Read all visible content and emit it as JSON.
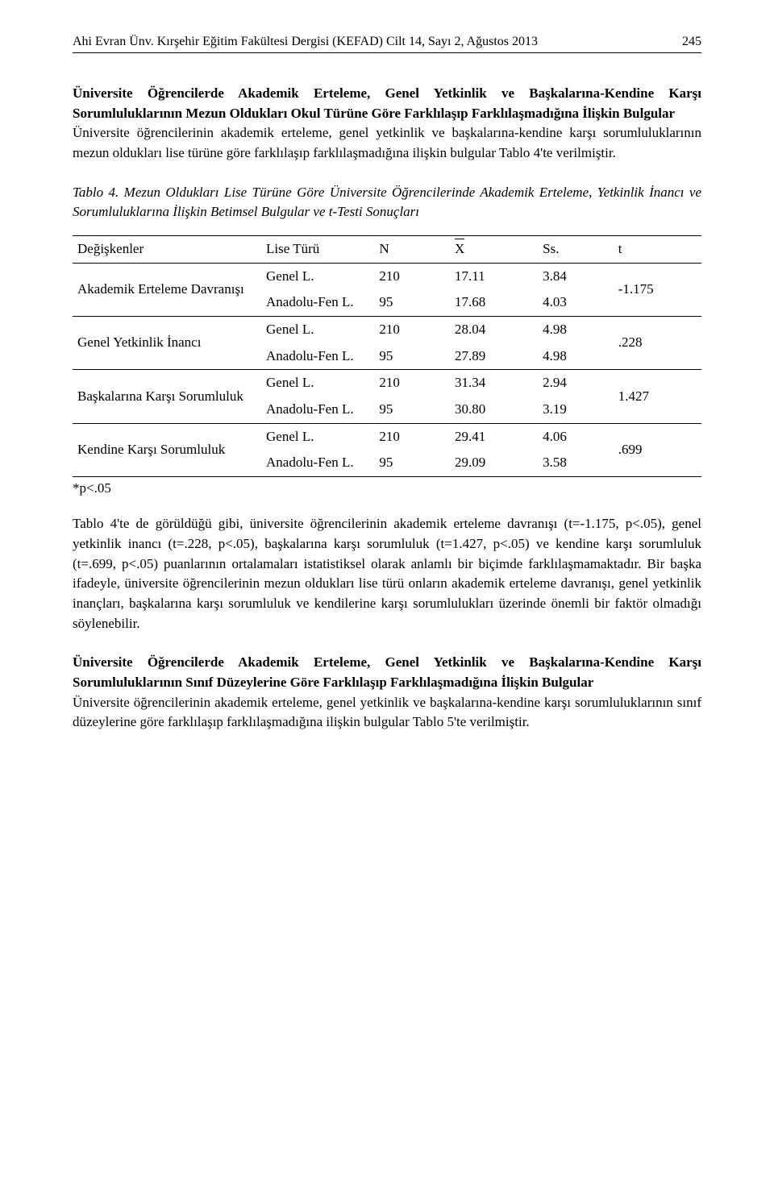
{
  "header": {
    "journal": "Ahi Evran Ünv. Kırşehir Eğitim Fakültesi Dergisi (KEFAD) Cilt 14, Sayı 2, Ağustos 2013",
    "page": "245"
  },
  "section1": {
    "title": "Üniversite Öğrencilerde Akademik Erteleme, Genel Yetkinlik ve Başkalarına-Kendine Karşı Sorumluluklarının Mezun Oldukları Okul Türüne Göre Farklılaşıp Farklılaşmadığına İlişkin Bulgular",
    "body": "Üniversite öğrencilerinin akademik erteleme, genel yetkinlik ve başkalarına-kendine karşı sorumluluklarının mezun oldukları lise türüne göre farklılaşıp farklılaşmadığına ilişkin bulgular Tablo 4'te verilmiştir."
  },
  "table4": {
    "caption_lead": "Tablo 4.",
    "caption_rest": " Mezun Oldukları Lise Türüne Göre Üniversite Öğrencilerinde Akademik Erteleme, Yetkinlik İnancı ve Sorumluluklarına İlişkin Betimsel Bulgular ve t-Testi Sonuçları",
    "headers": {
      "var": "Değişkenler",
      "lt": "Lise Türü",
      "n": "N",
      "x": "X",
      "ss": "Ss.",
      "t": "t"
    },
    "vars": [
      "Akademik Erteleme Davranışı",
      "Genel Yetkinlik İnancı",
      "Başkalarına Karşı Sorumluluk",
      "Kendine Karşı Sorumluluk"
    ],
    "lt_general": "Genel L.",
    "lt_anadolu": "Anadolu-Fen L.",
    "rows": [
      {
        "lt": "Genel L.",
        "n": "210",
        "x": "17.11",
        "ss": "3.84"
      },
      {
        "lt": "Anadolu-Fen L.",
        "n": "95",
        "x": "17.68",
        "ss": "4.03"
      },
      {
        "lt": "Genel L.",
        "n": "210",
        "x": "28.04",
        "ss": "4.98"
      },
      {
        "lt": "Anadolu-Fen L.",
        "n": "95",
        "x": "27.89",
        "ss": "4.98"
      },
      {
        "lt": "Genel L.",
        "n": "210",
        "x": "31.34",
        "ss": "2.94"
      },
      {
        "lt": "Anadolu-Fen L.",
        "n": "95",
        "x": "30.80",
        "ss": "3.19"
      },
      {
        "lt": "Genel L.",
        "n": "210",
        "x": "29.41",
        "ss": "4.06"
      },
      {
        "lt": "Anadolu-Fen L.",
        "n": "95",
        "x": "29.09",
        "ss": "3.58"
      }
    ],
    "t_values": [
      "-1.175",
      ".228",
      "1.427",
      ".699"
    ],
    "footnote": "*p<.05"
  },
  "para_after_table": "Tablo 4'te de görüldüğü gibi, üniversite öğrencilerinin akademik erteleme davranışı (t=-1.175, p<.05), genel yetkinlik inancı (t=.228, p<.05), başkalarına karşı sorumluluk (t=1.427, p<.05) ve kendine karşı sorumluluk (t=.699, p<.05) puanlarının ortalamaları istatistiksel olarak anlamlı bir biçimde farklılaşmamaktadır. Bir başka ifadeyle, üniversite öğrencilerinin mezun oldukları lise türü onların akademik erteleme davranışı, genel yetkinlik inançları, başkalarına karşı sorumluluk ve kendilerine karşı sorumlulukları üzerinde önemli bir faktör olmadığı söylenebilir.",
  "section2": {
    "title": "Üniversite Öğrencilerde Akademik Erteleme, Genel Yetkinlik ve Başkalarına-Kendine Karşı Sorumluluklarının Sınıf Düzeylerine Göre Farklılaşıp Farklılaşmadığına İlişkin Bulgular",
    "body": "Üniversite öğrencilerinin akademik erteleme, genel yetkinlik ve başkalarına-kendine karşı sorumluluklarının sınıf düzeylerine göre farklılaşıp farklılaşmadığına ilişkin bulgular Tablo 5'te verilmiştir."
  }
}
